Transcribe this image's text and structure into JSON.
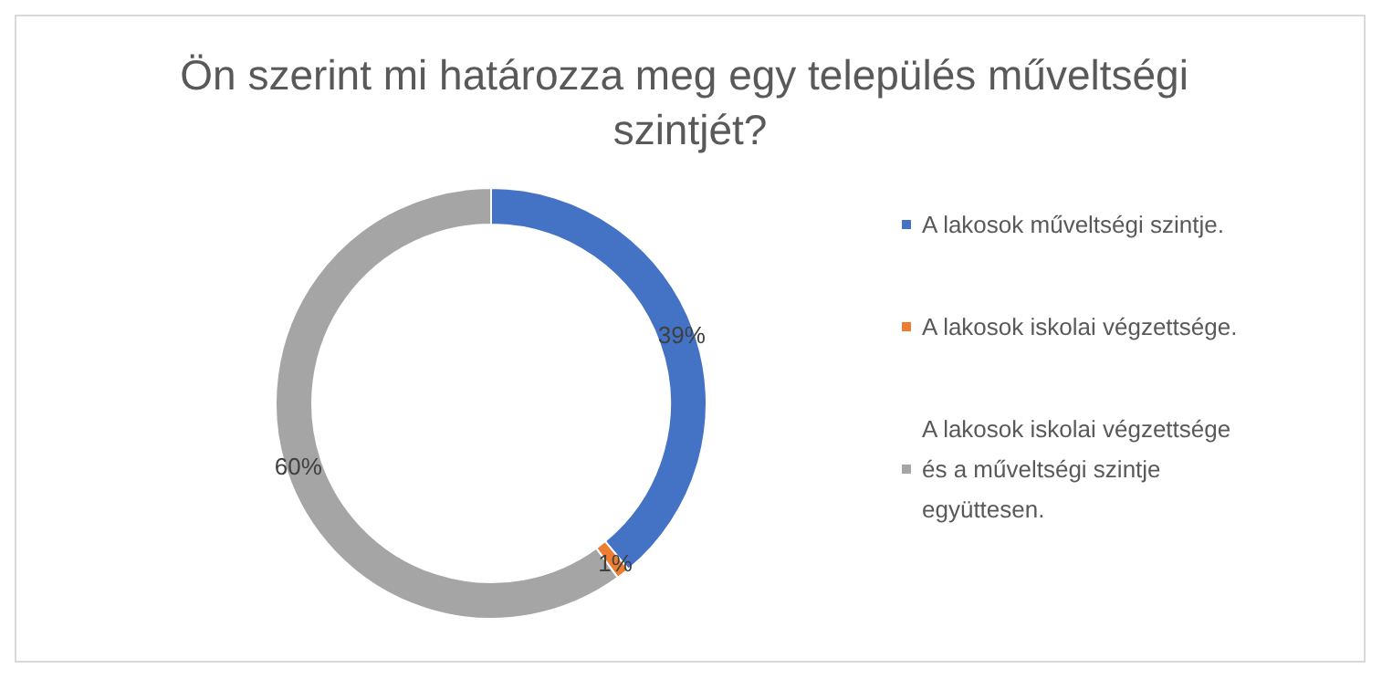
{
  "chart_data": {
    "type": "donut",
    "title": "Ön szerint mi határozza meg egy település műveltségi szintjét?",
    "categories": [
      "A lakosok műveltségi szintje.",
      "A lakosok iskolai végzettsége.",
      "A lakosok iskolai végzettsége és a műveltségi szintje együttesen."
    ],
    "values": [
      39,
      1,
      60
    ],
    "colors": [
      "#4472c4",
      "#ed7d31",
      "#a5a5a5"
    ],
    "value_labels": [
      "39%",
      "1%",
      "60%"
    ],
    "legend": "right"
  }
}
